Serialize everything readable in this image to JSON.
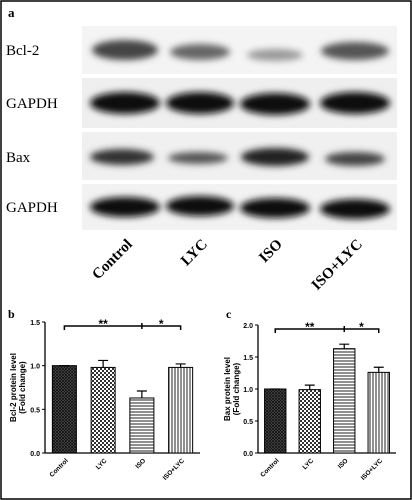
{
  "blot": {
    "panel": "a",
    "rows": [
      "Bcl-2",
      "GAPDH",
      "Bax",
      "GAPDH"
    ],
    "lanes": [
      "Control",
      "LYC",
      "ISO",
      "ISO+LYC"
    ]
  },
  "chart_data": [
    {
      "type": "bar",
      "panel": "b",
      "ylabel": [
        "Bcl-2 protein level",
        "(Fold change)"
      ],
      "categories": [
        "Control",
        "LYC",
        "ISO",
        "ISO+LYC"
      ],
      "values": [
        1.0,
        0.98,
        0.63,
        0.98
      ],
      "errors": [
        0,
        0.08,
        0.08,
        0.04
      ],
      "patterns": [
        "crosshatch",
        "checker",
        "horizontal",
        "vertical"
      ],
      "ylim": [
        0,
        1.5
      ],
      "yticks": [
        {
          "value": 0,
          "label": "0.0"
        },
        {
          "value": 0.5,
          "label": "0.5"
        },
        {
          "value": 1,
          "label": "1.0"
        },
        {
          "value": 1.5,
          "label": "1.5"
        }
      ],
      "annotations": [
        "**",
        "*"
      ]
    },
    {
      "type": "bar",
      "panel": "c",
      "ylabel": [
        "Bax protein level",
        "(Fold change)"
      ],
      "categories": [
        "Control",
        "LYC",
        "ISO",
        "ISO+LYC"
      ],
      "values": [
        1.0,
        0.99,
        1.63,
        1.26
      ],
      "errors": [
        0,
        0.07,
        0.07,
        0.08
      ],
      "patterns": [
        "crosshatch",
        "checker",
        "horizontal",
        "vertical"
      ],
      "ylim": [
        0,
        2
      ],
      "yticks": [
        {
          "value": 0,
          "label": "0.0"
        },
        {
          "value": 0.5,
          "label": "0.5"
        },
        {
          "value": 1,
          "label": "1.0"
        },
        {
          "value": 1.5,
          "label": "1.5"
        },
        {
          "value": 2,
          "label": "2.0"
        }
      ],
      "annotations": [
        "**",
        "*"
      ]
    }
  ]
}
